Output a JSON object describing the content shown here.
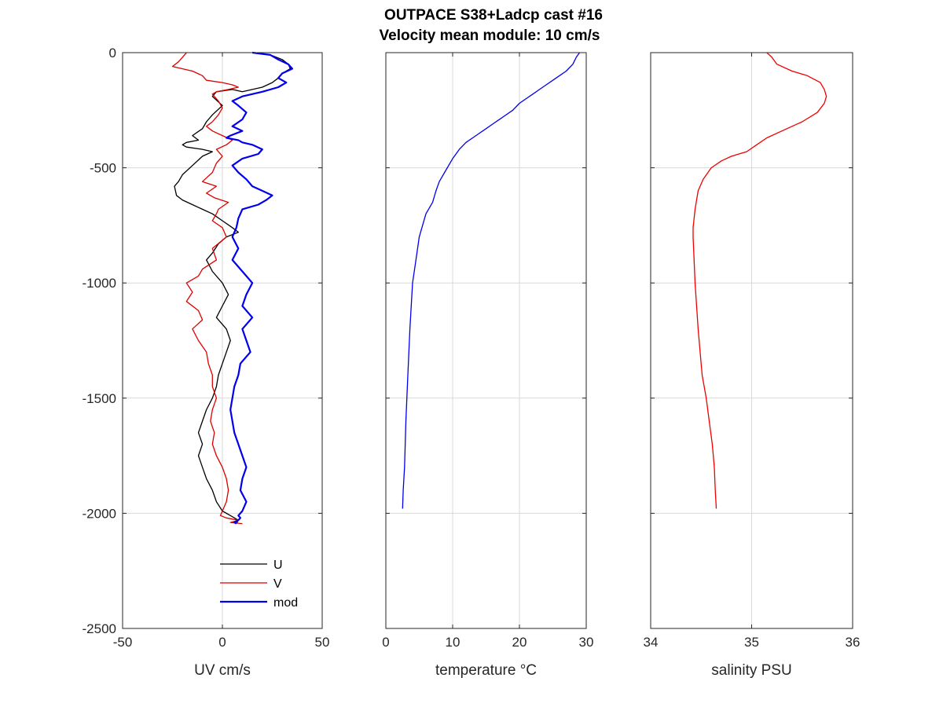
{
  "figure": {
    "title_line1": "OUTPACE S38+Ladcp cast #16",
    "title_line2": "Velocity mean module:  10 cm/s"
  },
  "colors": {
    "U": "#000000",
    "V": "#dd0000",
    "mod": "#0000ee",
    "temperature": "#0000ee",
    "salinity": "#ee0000",
    "grid": "#d9d9d9",
    "axes": "#262626"
  },
  "chart_data": [
    {
      "type": "line",
      "id": "velocity",
      "xlabel": "UV cm/s",
      "ylabel": "",
      "xlim": [
        -50,
        50
      ],
      "ylim": [
        -2500,
        0
      ],
      "xticks": [
        -50,
        0,
        50
      ],
      "yticks": [
        -2500,
        -2000,
        -1500,
        -1000,
        -500,
        0
      ],
      "xgrid": [
        0
      ],
      "ygrid": [
        -2000,
        -1500,
        -1000,
        -500
      ],
      "legend_position": "bottom-right",
      "series": [
        {
          "name": "U",
          "color": "#000000",
          "width": 1.3,
          "x": [
            15,
            24,
            30,
            33,
            34,
            30,
            28,
            25,
            20,
            15,
            10,
            5,
            -3,
            -5,
            0,
            -5,
            -8,
            -10,
            -15,
            -12,
            -18,
            -20,
            -18,
            -10,
            -5,
            -10,
            -15,
            -20,
            -22,
            -24,
            -23,
            -20,
            -15,
            -10,
            -5,
            0,
            5,
            8,
            2,
            -2,
            -5,
            -8,
            -5,
            0,
            3,
            0,
            -3,
            2,
            4,
            2,
            0,
            -2,
            -3,
            -5,
            -8,
            -10,
            -12,
            -10,
            -12,
            -10,
            -8,
            -5,
            -3,
            0,
            4,
            8,
            7
          ],
          "y": [
            0,
            -10,
            -30,
            -50,
            -70,
            -90,
            -110,
            -130,
            -150,
            -160,
            -170,
            -160,
            -170,
            -190,
            -230,
            -270,
            -300,
            -330,
            -360,
            -380,
            -390,
            -400,
            -410,
            -420,
            -430,
            -450,
            -490,
            -530,
            -560,
            -580,
            -620,
            -640,
            -660,
            -680,
            -700,
            -730,
            -760,
            -780,
            -800,
            -830,
            -870,
            -900,
            -950,
            -1000,
            -1050,
            -1100,
            -1150,
            -1200,
            -1250,
            -1300,
            -1350,
            -1400,
            -1450,
            -1500,
            -1550,
            -1600,
            -1650,
            -1700,
            -1750,
            -1800,
            -1850,
            -1900,
            -1950,
            -1990,
            -2010,
            -2030,
            -2045
          ]
        },
        {
          "name": "V",
          "color": "#dd0000",
          "width": 1.3,
          "x": [
            -18,
            -20,
            -22,
            -25,
            -15,
            -10,
            -8,
            0,
            5,
            8,
            3,
            -3,
            -5,
            -2,
            0,
            -2,
            -5,
            -8,
            -5,
            0,
            5,
            2,
            -3,
            0,
            -3,
            -5,
            -10,
            -3,
            -8,
            -4,
            3,
            -2,
            -3,
            -5,
            0,
            2,
            -5,
            -3,
            -10,
            -12,
            -18,
            -15,
            -18,
            -12,
            -10,
            -15,
            -12,
            -8,
            -7,
            -5,
            -5,
            -3,
            -5,
            -6,
            -4,
            -5,
            -3,
            0,
            2,
            3,
            2,
            0,
            -1,
            2,
            8,
            4,
            10
          ],
          "y": [
            0,
            -20,
            -40,
            -60,
            -80,
            -100,
            -120,
            -130,
            -140,
            -150,
            -160,
            -170,
            -180,
            -210,
            -240,
            -270,
            -300,
            -320,
            -340,
            -360,
            -380,
            -400,
            -420,
            -450,
            -480,
            -520,
            -560,
            -580,
            -610,
            -630,
            -650,
            -680,
            -700,
            -730,
            -760,
            -800,
            -850,
            -900,
            -940,
            -970,
            -1000,
            -1040,
            -1080,
            -1120,
            -1160,
            -1200,
            -1250,
            -1300,
            -1350,
            -1400,
            -1450,
            -1500,
            -1550,
            -1600,
            -1650,
            -1700,
            -1750,
            -1800,
            -1850,
            -1900,
            -1950,
            -1990,
            -2010,
            -2020,
            -2030,
            -2040,
            -2045
          ]
        },
        {
          "name": "mod",
          "color": "#0000ee",
          "width": 2.2,
          "x": [
            15,
            24,
            28,
            33,
            35,
            30,
            28,
            32,
            28,
            20,
            10,
            5,
            8,
            12,
            10,
            5,
            10,
            4,
            2,
            8,
            10,
            15,
            20,
            18,
            10,
            5,
            8,
            12,
            15,
            20,
            25,
            22,
            18,
            10,
            8,
            7,
            5,
            8,
            5,
            10,
            15,
            12,
            10,
            15,
            10,
            12,
            14,
            9,
            8,
            6,
            5,
            4,
            5,
            6,
            8,
            10,
            12,
            10,
            9,
            12,
            10,
            8,
            9,
            8,
            6,
            7
          ],
          "y": [
            0,
            -10,
            -30,
            -50,
            -70,
            -90,
            -110,
            -130,
            -150,
            -170,
            -190,
            -210,
            -230,
            -260,
            -290,
            -320,
            -340,
            -360,
            -370,
            -380,
            -390,
            -400,
            -420,
            -440,
            -460,
            -490,
            -520,
            -550,
            -580,
            -600,
            -620,
            -640,
            -660,
            -680,
            -720,
            -760,
            -800,
            -850,
            -900,
            -950,
            -1000,
            -1050,
            -1100,
            -1150,
            -1200,
            -1250,
            -1300,
            -1350,
            -1400,
            -1450,
            -1500,
            -1550,
            -1600,
            -1650,
            -1700,
            -1750,
            -1800,
            -1850,
            -1900,
            -1950,
            -1990,
            -2010,
            -2020,
            -2030,
            -2040,
            -2045
          ]
        }
      ]
    },
    {
      "type": "line",
      "id": "temperature",
      "xlabel": "temperature °C",
      "ylabel": "",
      "xlim": [
        0,
        30
      ],
      "ylim": [
        -2500,
        0
      ],
      "xticks": [
        0,
        10,
        20,
        30
      ],
      "yticks": [
        -2500,
        -2000,
        -1500,
        -1000,
        -500,
        0
      ],
      "xgrid": [
        10,
        20
      ],
      "ygrid": [
        -2000,
        -1500,
        -1000,
        -500
      ],
      "series": [
        {
          "color": "#0000ee",
          "width": 1.3,
          "x": [
            29,
            28.5,
            28,
            27,
            26,
            25,
            24,
            23,
            22,
            21,
            20,
            19,
            17.5,
            16,
            15,
            14,
            13,
            12,
            11,
            10.5,
            10,
            9,
            8,
            7.5,
            7,
            6,
            5,
            4.5,
            4,
            3.6,
            3.3,
            3,
            2.8,
            2.6,
            2.5
          ],
          "y": [
            0,
            -20,
            -50,
            -80,
            -100,
            -120,
            -140,
            -160,
            -180,
            -200,
            -220,
            -250,
            -280,
            -310,
            -330,
            -350,
            -370,
            -390,
            -420,
            -440,
            -460,
            -510,
            -560,
            -600,
            -650,
            -700,
            -800,
            -900,
            -1000,
            -1200,
            -1400,
            -1600,
            -1800,
            -1900,
            -1980
          ]
        }
      ]
    },
    {
      "type": "line",
      "id": "salinity",
      "xlabel": "salinity PSU",
      "ylabel": "",
      "xlim": [
        34,
        36
      ],
      "ylim": [
        -2500,
        0
      ],
      "xticks": [
        34,
        35,
        36
      ],
      "yticks": [
        -2500,
        -2000,
        -1500,
        -1000,
        -500,
        0
      ],
      "xgrid": [
        35
      ],
      "ygrid": [
        -2000,
        -1500,
        -1000,
        -500
      ],
      "series": [
        {
          "color": "#ee0000",
          "width": 1.3,
          "x": [
            35.15,
            35.2,
            35.25,
            35.4,
            35.55,
            35.68,
            35.72,
            35.74,
            35.72,
            35.65,
            35.5,
            35.3,
            35.15,
            35.05,
            34.95,
            34.8,
            34.7,
            34.6,
            34.52,
            34.47,
            34.44,
            34.42,
            34.42,
            34.44,
            34.47,
            34.51,
            34.55,
            34.58,
            34.61,
            34.63,
            34.64,
            34.65
          ],
          "y": [
            0,
            -20,
            -50,
            -80,
            -100,
            -130,
            -160,
            -190,
            -220,
            -260,
            -300,
            -340,
            -370,
            -400,
            -430,
            -450,
            -470,
            -500,
            -550,
            -600,
            -680,
            -760,
            -800,
            -1000,
            -1200,
            -1400,
            -1500,
            -1600,
            -1700,
            -1800,
            -1900,
            -1980
          ]
        }
      ]
    }
  ]
}
